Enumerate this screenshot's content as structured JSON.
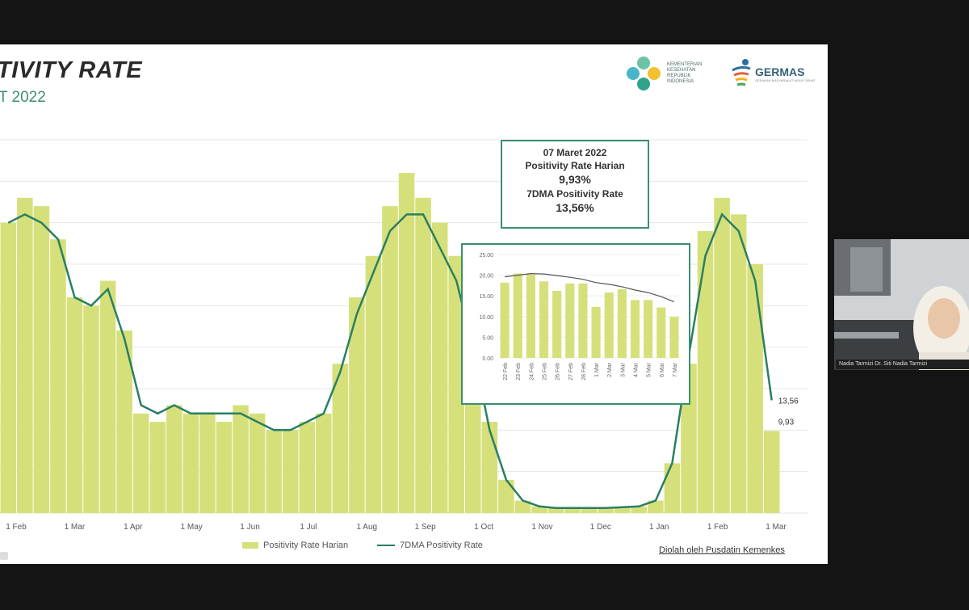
{
  "slide": {
    "title": "TIVITY RATE",
    "subtitle": "T 2022",
    "kemenkes_text": "KEMENTERIAN KESEHATAN REPUBLIK INDONESIA",
    "germas_text": "GERMAS",
    "germas_sub": "GERAKAN MASYARAKAT HIDUP SEHAT",
    "source": "Diolah oleh Pusdatin Kemenkes"
  },
  "callout": {
    "date": "07 Maret 2022",
    "label1": "Positivity Rate Harian",
    "value1": "9,93%",
    "label2": "7DMA Positivity Rate",
    "value2": "13,56%"
  },
  "legend": {
    "bars": "Positivity Rate Harian",
    "line": "7DMA Positivity Rate"
  },
  "video": {
    "caption": "Nadia Tarmizi Dr. Siti Nadia Tarmizi"
  },
  "colors": {
    "bar": "#d6e07a",
    "line": "#2a7f62",
    "frame": "#3a8f6d"
  },
  "chart_data": [
    {
      "type": "bar",
      "title": "Positivity Rate",
      "x_tick_labels": [
        "1 Feb",
        "1 Mar",
        "1 Apr",
        "1 May",
        "1 Jun",
        "1 Jul",
        "1 Aug",
        "1 Sep",
        "1 Oct",
        "1 Nov",
        "1 Dec",
        "1 Jan",
        "1 Feb",
        "1 Mar"
      ],
      "end_labels": [
        "13,56",
        "9,93"
      ],
      "series": [
        {
          "name": "Positivity Rate Harian",
          "kind": "bar",
          "values": [
            35,
            38,
            37,
            33,
            26,
            25,
            28,
            22,
            12,
            11,
            13,
            12,
            12,
            11,
            13,
            12,
            10,
            10,
            11,
            12,
            18,
            26,
            31,
            37,
            41,
            38,
            35,
            31,
            23,
            11,
            4,
            1.5,
            0.8,
            0.6,
            0.6,
            0.6,
            0.7,
            0.8,
            0.8,
            1.5,
            6,
            18,
            34,
            38,
            36,
            30,
            9.9
          ]
        },
        {
          "name": "7DMA Positivity Rate",
          "kind": "line",
          "values": [
            35,
            36,
            35,
            33,
            26,
            25,
            27,
            21,
            13,
            12,
            13,
            12,
            12,
            12,
            12,
            11,
            10,
            10,
            11,
            12,
            17,
            24,
            29,
            34,
            36,
            36,
            32,
            28,
            20,
            10,
            4,
            1.5,
            0.8,
            0.6,
            0.6,
            0.6,
            0.6,
            0.7,
            0.8,
            1.5,
            6,
            19,
            31,
            36,
            34,
            28,
            13.6
          ]
        }
      ]
    },
    {
      "type": "bar",
      "title": "Inset: 22 Feb - 7 Mar",
      "categories": [
        "22 Feb",
        "23 Feb",
        "24 Feb",
        "25 Feb",
        "26 Feb",
        "27 Feb",
        "28 Feb",
        "1 Mar",
        "2 Mar",
        "3 Mar",
        "4 Mar",
        "5 Mar",
        "6 Mar",
        "7 Mar"
      ],
      "y_tick_labels": [
        "0.00",
        "5.00",
        "10.00",
        "15.00",
        "20.00",
        "25.00"
      ],
      "ylim": [
        0,
        25
      ],
      "series": [
        {
          "name": "Positivity Rate Harian",
          "kind": "bar",
          "values": [
            18.2,
            20.4,
            20.2,
            18.5,
            16.2,
            18.0,
            18.0,
            12.3,
            15.8,
            16.6,
            14.0,
            14.0,
            12.2,
            9.93
          ]
        },
        {
          "name": "7DMA Positivity Rate",
          "kind": "line",
          "values": [
            19.6,
            20.0,
            20.4,
            20.3,
            19.9,
            19.5,
            19.0,
            18.2,
            17.8,
            17.2,
            16.4,
            15.8,
            14.8,
            13.56
          ]
        }
      ]
    }
  ]
}
